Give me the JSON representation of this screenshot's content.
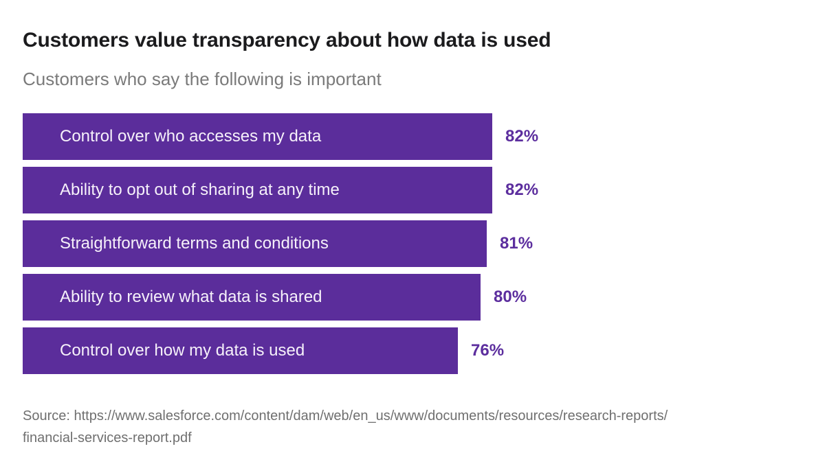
{
  "header": {
    "title": "Customers value transparency about how data is used",
    "subtitle": "Customers who say the following is important"
  },
  "footer": {
    "source_line1": "Source: https://www.salesforce.com/content/dam/web/en_us/www/documents/resources/research-reports/",
    "source_line2": "financial-services-report.pdf"
  },
  "colors": {
    "background": "#ffffff",
    "bar": "#5b2d9b",
    "bar_label_text": "#f6f1fa",
    "value_text": "#5c2e9e",
    "title_text": "#1b1b1d",
    "subtitle_text": "#7a7a7a",
    "source_text": "#6f6f6f"
  },
  "chart_data": {
    "type": "bar",
    "orientation": "horizontal",
    "title": "Customers value transparency about how data is used",
    "subtitle": "Customers who say the following is important",
    "categories": [
      "Control over who accesses my data",
      "Ability to opt out of sharing at any time",
      "Straightforward terms and conditions",
      "Ability to review what data is shared",
      "Control over how my data is used"
    ],
    "values": [
      82,
      82,
      81,
      80,
      76
    ],
    "value_labels": [
      "82%",
      "82%",
      "81%",
      "80%",
      "76%"
    ],
    "unit": "%",
    "xlim": [
      0,
      100
    ],
    "grid": false,
    "legend": false,
    "bar_color": "#5b2d9b",
    "source": "Source: https://www.salesforce.com/content/dam/web/en_us/www/documents/resources/research-reports/financial-services-report.pdf"
  }
}
